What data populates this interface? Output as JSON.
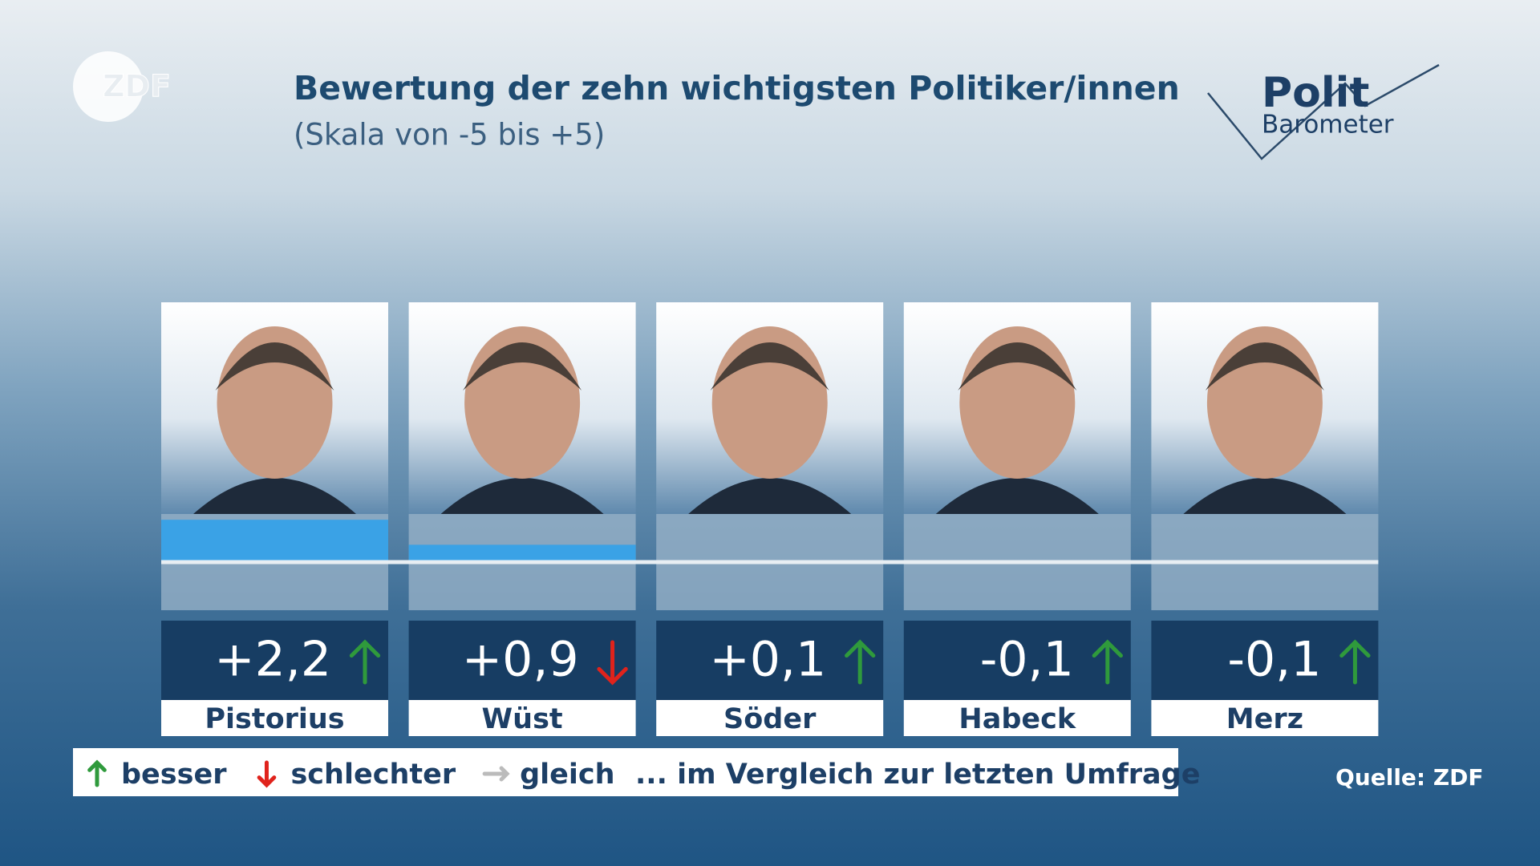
{
  "logo": {
    "text": "ZDF",
    "brand_top": "Polit",
    "brand_bottom": "Barometer"
  },
  "chart_data": {
    "type": "bar",
    "title": "Bewertung der zehn wichtigsten Politiker/innen",
    "subtitle": "(Skala von -5 bis +5)",
    "categories": [
      "Pistorius",
      "Wüst",
      "Söder",
      "Habeck",
      "Merz"
    ],
    "values": [
      2.2,
      0.9,
      0.1,
      -0.1,
      -0.1
    ],
    "value_labels": [
      "+2,2",
      "+0,9",
      "+0,1",
      "-0,1",
      "-0,1"
    ],
    "trend": [
      "up",
      "down",
      "up",
      "up",
      "up"
    ],
    "trend_colors": {
      "up": "#2f9a3c",
      "down": "#e0231c",
      "same": "#bbbbbb"
    },
    "color": "#3aa2e6",
    "ylim": [
      -2.5,
      2.5
    ],
    "legend": [
      {
        "trend": "up",
        "label": "besser"
      },
      {
        "trend": "down",
        "label": "schlechter"
      },
      {
        "trend": "same",
        "label": "gleich"
      }
    ],
    "legend_note": "... im Vergleich zur letzten Umfrage",
    "source": "Quelle: ZDF"
  }
}
